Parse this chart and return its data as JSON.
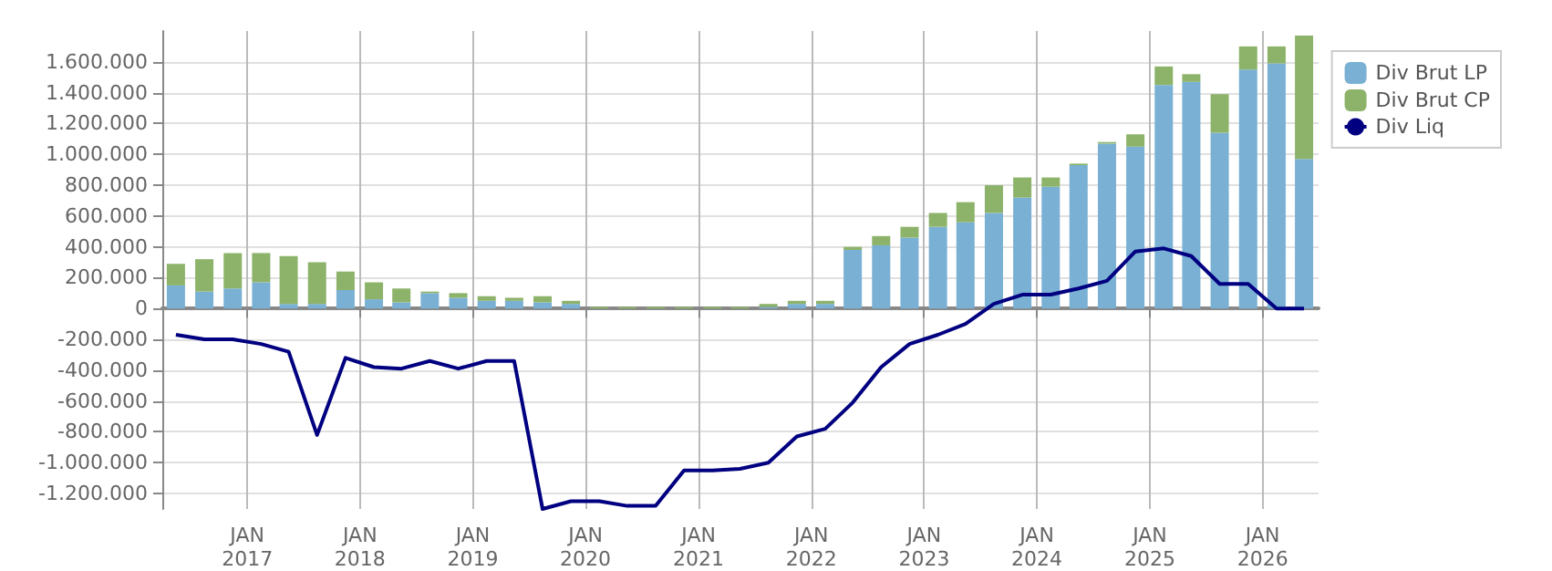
{
  "chart_data": {
    "type": "bar",
    "stacked": true,
    "x": [
      "2016-05-15",
      "2016-08-15",
      "2016-11-15",
      "2017-02-15",
      "2017-05-15",
      "2017-08-15",
      "2017-11-15",
      "2018-02-15",
      "2018-05-15",
      "2018-08-15",
      "2018-11-15",
      "2019-02-15",
      "2019-05-15",
      "2019-08-15",
      "2019-11-15",
      "2020-02-15",
      "2020-05-15",
      "2020-08-15",
      "2020-11-15",
      "2021-02-15",
      "2021-05-15",
      "2021-08-15",
      "2021-11-15",
      "2022-02-15",
      "2022-05-15",
      "2022-08-15",
      "2022-11-15",
      "2023-02-15",
      "2023-05-15",
      "2023-08-15",
      "2023-11-15",
      "2024-02-15",
      "2024-05-15",
      "2024-08-15",
      "2024-11-15",
      "2025-02-15",
      "2025-05-15",
      "2025-08-15",
      "2025-11-15",
      "2026-02-15",
      "2026-05-15"
    ],
    "series": [
      {
        "name": "Div Brut LP",
        "color": "#79b0d3",
        "values": [
          150000,
          110000,
          130000,
          170000,
          30000,
          30000,
          120000,
          60000,
          40000,
          100000,
          70000,
          50000,
          50000,
          40000,
          30000,
          0,
          0,
          0,
          0,
          0,
          0,
          10000,
          30000,
          30000,
          380000,
          410000,
          460000,
          530000,
          560000,
          620000,
          720000,
          790000,
          930000,
          1070000,
          1050000,
          1450000,
          1470000,
          1140000,
          1550000,
          1590000,
          970000
        ]
      },
      {
        "name": "Div Brut CP",
        "color": "#8db36a",
        "values": [
          140000,
          210000,
          230000,
          190000,
          310000,
          270000,
          120000,
          110000,
          90000,
          10000,
          30000,
          30000,
          20000,
          40000,
          20000,
          10000,
          10000,
          10000,
          10000,
          10000,
          10000,
          20000,
          20000,
          20000,
          20000,
          60000,
          70000,
          90000,
          130000,
          180000,
          130000,
          60000,
          10000,
          10000,
          80000,
          120000,
          50000,
          250000,
          150000,
          110000,
          800000
        ]
      },
      {
        "name": "Div Liq",
        "type": "line",
        "color": "#000080",
        "marker": "none",
        "values": [
          -170000,
          -200000,
          -200000,
          -230000,
          -280000,
          -820000,
          -320000,
          -380000,
          -390000,
          -340000,
          -390000,
          -340000,
          -340000,
          -1300000,
          -1250000,
          -1250000,
          -1280000,
          -1280000,
          -1050000,
          -1050000,
          -1040000,
          -1000000,
          -830000,
          -780000,
          -610000,
          -380000,
          -230000,
          -170000,
          -100000,
          30000,
          90000,
          90000,
          130000,
          180000,
          370000,
          390000,
          340000,
          160000,
          160000,
          0,
          0
        ]
      }
    ],
    "xlim": [
      "2016-04-01",
      "2026-07-01"
    ],
    "xticks": [
      {
        "value": "2017-01-01",
        "label": "JAN\n2017"
      },
      {
        "value": "2018-01-01",
        "label": "JAN\n2018"
      },
      {
        "value": "2019-01-01",
        "label": "JAN\n2019"
      },
      {
        "value": "2020-01-01",
        "label": "JAN\n2020"
      },
      {
        "value": "2021-01-01",
        "label": "JAN\n2021"
      },
      {
        "value": "2022-01-01",
        "label": "JAN\n2022"
      },
      {
        "value": "2023-01-01",
        "label": "JAN\n2023"
      },
      {
        "value": "2024-01-01",
        "label": "JAN\n2024"
      },
      {
        "value": "2025-01-01",
        "label": "JAN\n2025"
      },
      {
        "value": "2026-01-01",
        "label": "JAN\n2026"
      }
    ],
    "ylim": [
      -1300000,
      1800000
    ],
    "yticks": [
      {
        "value": -1200000,
        "label": "-1.200.000"
      },
      {
        "value": -1000000,
        "label": "-1.000.000"
      },
      {
        "value": -800000,
        "label": "-800.000"
      },
      {
        "value": -600000,
        "label": "-600.000"
      },
      {
        "value": -400000,
        "label": "-400.000"
      },
      {
        "value": -200000,
        "label": "-200.000"
      },
      0,
      {
        "value": 200000,
        "label": "200.000"
      },
      {
        "value": 400000,
        "label": "400.000"
      },
      {
        "value": 600000,
        "label": "600.000"
      },
      {
        "value": 800000,
        "label": "800.000"
      },
      {
        "value": 1000000,
        "label": "1.000.000"
      },
      {
        "value": 1200000,
        "label": "1.200.000"
      },
      {
        "value": 1400000,
        "label": "1.400.000"
      },
      {
        "value": 1600000,
        "label": "1.600.000"
      }
    ],
    "grid": true,
    "legend": "top right"
  }
}
